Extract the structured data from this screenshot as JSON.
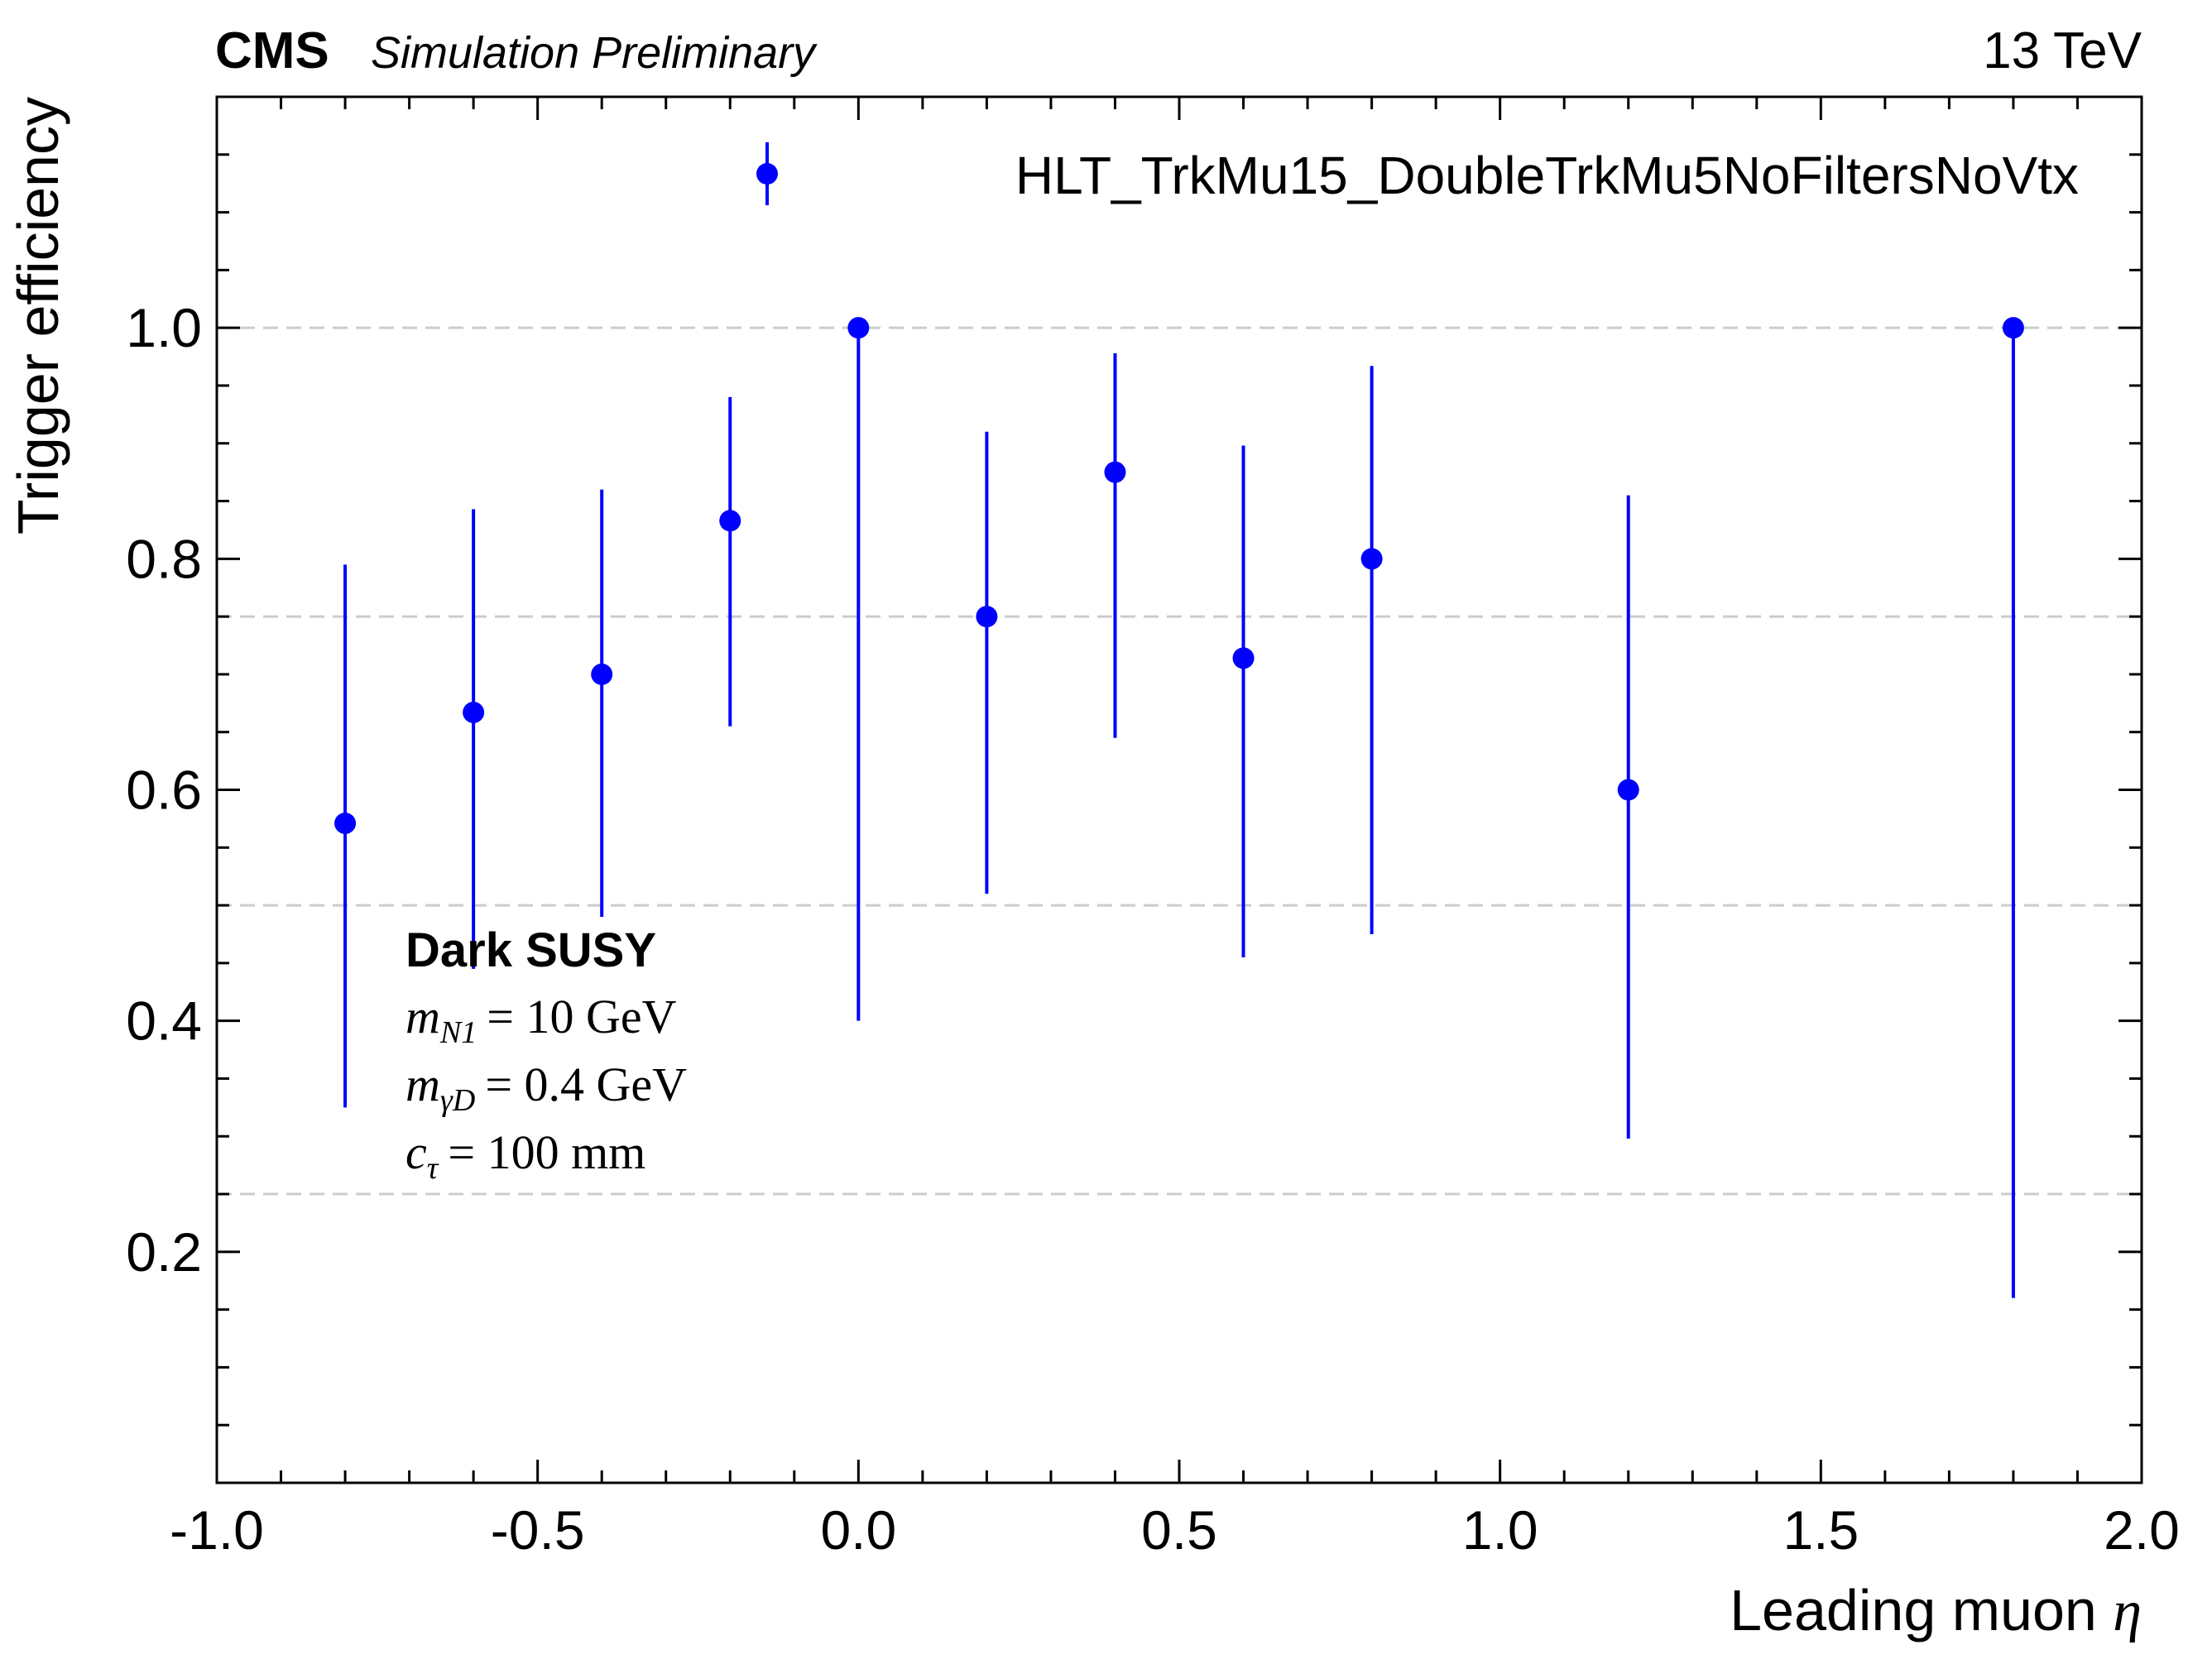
{
  "header": {
    "experiment": "CMS",
    "status": "Simulation Preliminary",
    "energy": "13 TeV"
  },
  "annotation": {
    "title": "Dark SUSY",
    "lines": [
      {
        "sym": "m",
        "sub": "N1",
        "rhs": "= 10 GeV"
      },
      {
        "sym": "m",
        "sub": "γD",
        "rhs": "= 0.4 GeV"
      },
      {
        "sym": "c",
        "sub": "τ",
        "rhs": "= 100 mm"
      }
    ]
  },
  "colors": {
    "series": "#0000ff",
    "grid": "#cccccc",
    "axis": "#000000"
  },
  "chart_data": {
    "type": "scatter",
    "title": "",
    "xlabel": "Leading muon η",
    "ylabel": "Trigger efficiency",
    "xlim": [
      -1.0,
      2.0
    ],
    "ylim": [
      0.0,
      1.2
    ],
    "xticks": [
      "-1.0",
      "-0.5",
      "0.0",
      "0.5",
      "1.0",
      "1.5",
      "2.0"
    ],
    "yticks": [
      "0.2",
      "0.4",
      "0.6",
      "0.8",
      "1.0"
    ],
    "grid": "horizontal dashed at 0.25, 0.5, 0.75, 1.0",
    "legend_position": "top-right",
    "series": [
      {
        "name": "HLT_TrkMu15_DoubleTrkMu5NoFiltersNoVtx",
        "x": [
          -0.8,
          -0.6,
          -0.4,
          -0.2,
          0.0,
          0.2,
          0.4,
          0.6,
          0.8,
          1.2,
          1.8
        ],
        "y": [
          0.571,
          0.667,
          0.7,
          0.833,
          1.0,
          0.75,
          0.875,
          0.714,
          0.8,
          0.6,
          1.0
        ],
        "y_low": [
          0.325,
          0.445,
          0.49,
          0.655,
          0.4,
          0.51,
          0.645,
          0.455,
          0.475,
          0.298,
          0.16
        ],
        "y_high": [
          0.795,
          0.843,
          0.86,
          0.94,
          1.0,
          0.91,
          0.978,
          0.898,
          0.967,
          0.855,
          1.0
        ]
      }
    ]
  }
}
